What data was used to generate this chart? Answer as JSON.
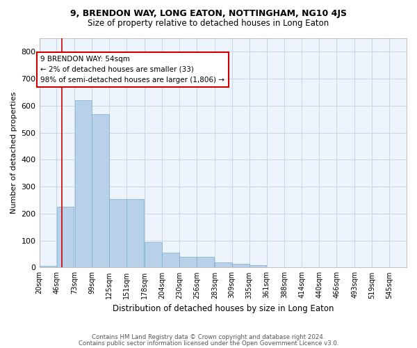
{
  "title": "9, BRENDON WAY, LONG EATON, NOTTINGHAM, NG10 4JS",
  "subtitle": "Size of property relative to detached houses in Long Eaton",
  "xlabel": "Distribution of detached houses by size in Long Eaton",
  "ylabel": "Number of detached properties",
  "bin_labels": [
    "20sqm",
    "46sqm",
    "73sqm",
    "99sqm",
    "125sqm",
    "151sqm",
    "178sqm",
    "204sqm",
    "230sqm",
    "256sqm",
    "283sqm",
    "309sqm",
    "335sqm",
    "361sqm",
    "388sqm",
    "414sqm",
    "440sqm",
    "466sqm",
    "493sqm",
    "519sqm",
    "545sqm"
  ],
  "bin_edges": [
    20,
    46,
    73,
    99,
    125,
    151,
    178,
    204,
    230,
    256,
    283,
    309,
    335,
    361,
    388,
    414,
    440,
    466,
    493,
    519,
    545
  ],
  "bar_heights": [
    5,
    225,
    620,
    570,
    255,
    255,
    95,
    55,
    40,
    40,
    20,
    15,
    10,
    0,
    0,
    0,
    0,
    0,
    0,
    0
  ],
  "bar_color": "#b8d0e8",
  "bar_edge_color": "#7aaacf",
  "grid_color": "#c8d8e8",
  "background_color": "#eef4fb",
  "property_line_x": 54,
  "property_line_color": "#cc0000",
  "annotation_text": "9 BRENDON WAY: 54sqm\n← 2% of detached houses are smaller (33)\n98% of semi-detached houses are larger (1,806) →",
  "annotation_box_color": "#ffffff",
  "annotation_box_edge": "#cc0000",
  "ylim": [
    0,
    850
  ],
  "yticks": [
    0,
    100,
    200,
    300,
    400,
    500,
    600,
    700,
    800
  ],
  "footer_line1": "Contains HM Land Registry data © Crown copyright and database right 2024.",
  "footer_line2": "Contains public sector information licensed under the Open Government Licence v3.0."
}
